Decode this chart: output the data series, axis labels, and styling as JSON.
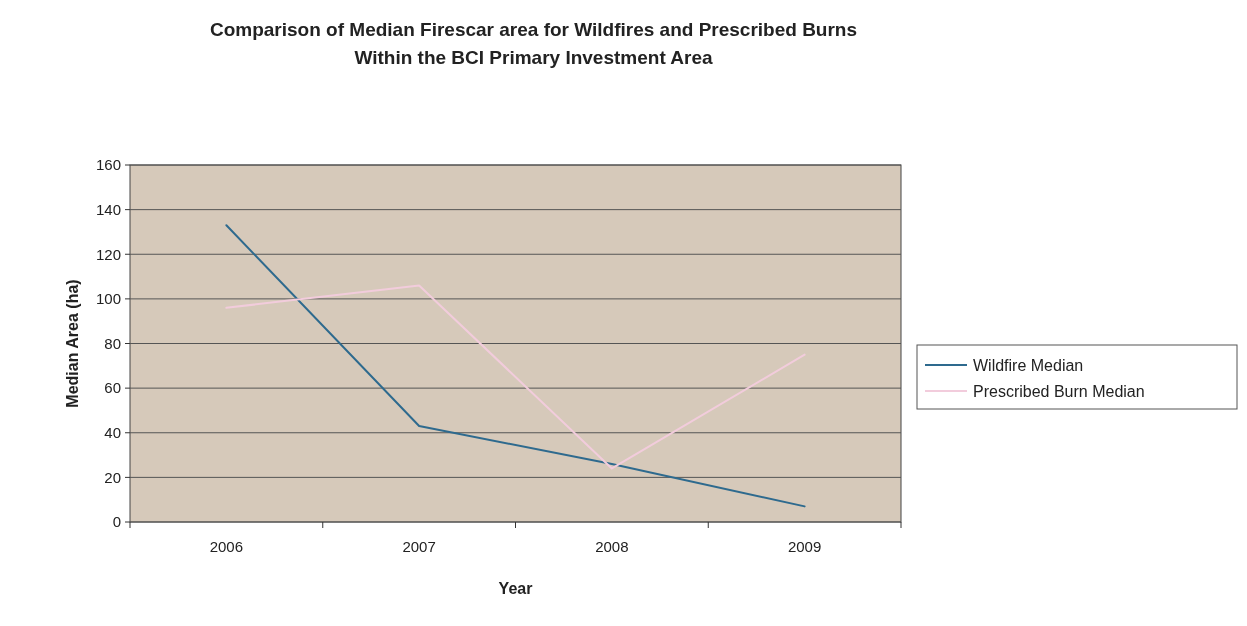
{
  "chart_data": {
    "type": "line",
    "title": "Comparison of Median Firescar area for Wildfires and Prescribed Burns\nWithin the BCI Primary Investment Area",
    "xlabel": "Year",
    "ylabel": "Median Area (ha)",
    "categories": [
      "2006",
      "2007",
      "2008",
      "2009"
    ],
    "series": [
      {
        "name": "Wildfire Median",
        "color": "#2e6a8e",
        "values": [
          133,
          43,
          26,
          7
        ]
      },
      {
        "name": "Prescribed Burn Median",
        "color": "#f2ccdc",
        "values": [
          96,
          106,
          24,
          75
        ]
      }
    ],
    "ylim": [
      0,
      160
    ],
    "yticks": [
      0,
      20,
      40,
      60,
      80,
      100,
      120,
      140,
      160
    ],
    "grid": "y",
    "legend": "right",
    "marker": "none",
    "line_style": "solid"
  }
}
